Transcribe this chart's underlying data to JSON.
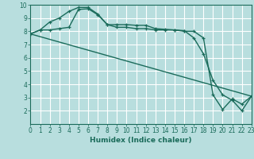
{
  "xlabel": "Humidex (Indice chaleur)",
  "ylabel": "",
  "xlim": [
    0,
    23
  ],
  "ylim": [
    1,
    10
  ],
  "background_color": "#b8dede",
  "grid_color": "#ffffff",
  "line_color": "#1a6b5a",
  "lines": [
    {
      "x": [
        0,
        1,
        2,
        3,
        4,
        5,
        6,
        7,
        8,
        9,
        10,
        11,
        12,
        13,
        14,
        15,
        16,
        17,
        18,
        19,
        20,
        21,
        22,
        23
      ],
      "y": [
        7.8,
        8.1,
        8.1,
        8.2,
        8.3,
        9.65,
        9.7,
        9.25,
        8.5,
        8.5,
        8.5,
        8.45,
        8.45,
        8.2,
        8.15,
        8.1,
        8.05,
        7.5,
        6.3,
        4.3,
        3.2,
        2.8,
        2.0,
        3.1
      ]
    },
    {
      "x": [
        0,
        1,
        2,
        3,
        4,
        5,
        6,
        7,
        8,
        9,
        10,
        11,
        12,
        13,
        14,
        15,
        16,
        17,
        18,
        19,
        20,
        21,
        22,
        23
      ],
      "y": [
        7.8,
        8.1,
        8.7,
        9.0,
        9.5,
        9.8,
        9.8,
        9.3,
        8.5,
        8.3,
        8.3,
        8.2,
        8.2,
        8.1,
        8.1,
        8.1,
        8.0,
        8.0,
        7.5,
        3.2,
        2.1,
        2.9,
        2.5,
        3.1
      ]
    },
    {
      "x": [
        0,
        23
      ],
      "y": [
        7.8,
        3.1
      ]
    }
  ],
  "xtick_labels": [
    "0",
    "1",
    "2",
    "3",
    "4",
    "5",
    "6",
    "7",
    "8",
    "9",
    "10",
    "11",
    "12",
    "13",
    "14",
    "15",
    "16",
    "17",
    "18",
    "19",
    "20",
    "21",
    "22",
    "23"
  ],
  "ytick_labels": [
    "2",
    "3",
    "4",
    "5",
    "6",
    "7",
    "8",
    "9",
    "10"
  ],
  "ytick_values": [
    2,
    3,
    4,
    5,
    6,
    7,
    8,
    9,
    10
  ],
  "font_color": "#1a6b5a",
  "marker": "+",
  "markersize": 3.5,
  "linewidth": 1.0,
  "tick_fontsize": 5.5,
  "xlabel_fontsize": 6.5
}
